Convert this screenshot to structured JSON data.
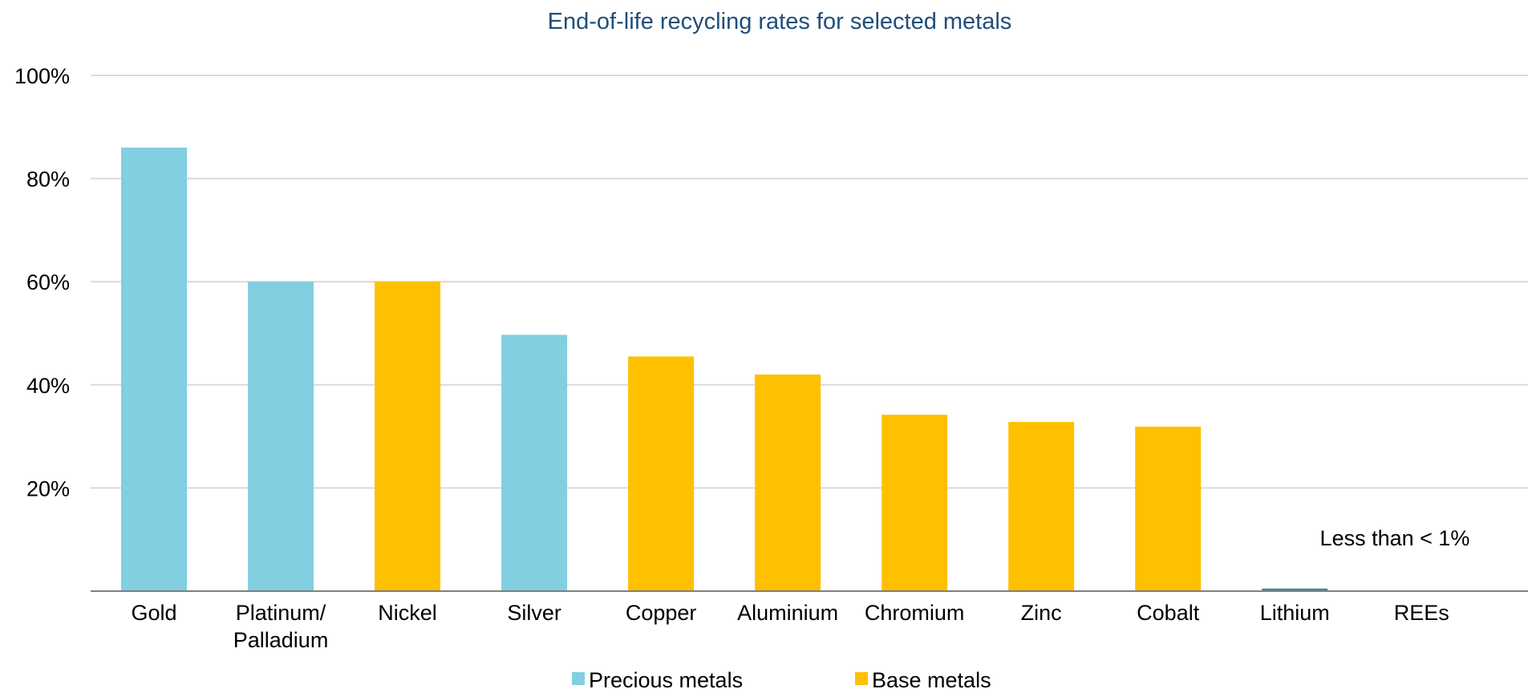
{
  "chart_data": {
    "type": "bar",
    "title": "End-of-life recycling rates for selected metals",
    "xlabel": "",
    "ylabel": "",
    "ylim": [
      0,
      100
    ],
    "y_ticks": [
      "20%",
      "40%",
      "60%",
      "80%",
      "100%"
    ],
    "y_tick_values": [
      20,
      40,
      60,
      80,
      100
    ],
    "grid": true,
    "legend_position": "bottom",
    "categories": [
      [
        "Gold"
      ],
      [
        "Platinum/",
        "Palladium"
      ],
      [
        "Nickel"
      ],
      [
        "Silver"
      ],
      [
        "Copper"
      ],
      [
        "Aluminium"
      ],
      [
        "Chromium"
      ],
      [
        "Zinc"
      ],
      [
        "Cobalt"
      ],
      [
        "Lithium"
      ],
      [
        "REEs"
      ]
    ],
    "values": [
      86,
      60,
      60,
      49.7,
      45.5,
      42,
      34.2,
      32.8,
      31.9,
      0.5,
      0
    ],
    "groups": [
      "Precious metals",
      "Precious metals",
      "Base metals",
      "Precious metals",
      "Base metals",
      "Base metals",
      "Base metals",
      "Base metals",
      "Base metals",
      "Precious metals",
      "Precious metals"
    ],
    "legend": [
      {
        "name": "Precious metals",
        "color": "#81CFE0"
      },
      {
        "name": "Base metals",
        "color": "#FFC000"
      }
    ],
    "annotation": "Less than < 1%",
    "colors": {
      "title": "#1F4E79",
      "grid": "#D9D9D9",
      "axis": "#808080",
      "text": "#000000",
      "lithium": "#2E8FA3"
    }
  }
}
